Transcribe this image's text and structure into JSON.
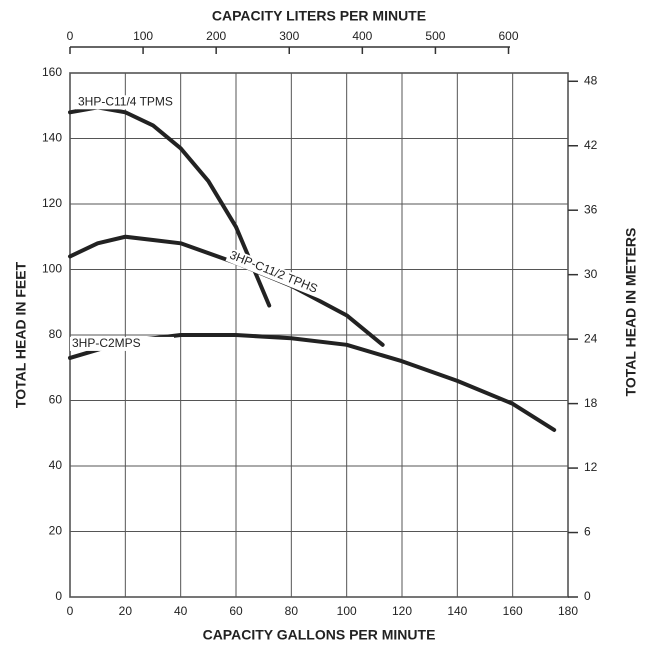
{
  "chart_data": {
    "type": "line",
    "title": "CAPACITY LITERS PER MINUTE",
    "xlabel": "CAPACITY GALLONS PER MINUTE",
    "ylabel": "TOTAL HEAD IN FEET",
    "y2label": "TOTAL HEAD IN METERS",
    "xlim": [
      0,
      180
    ],
    "xticks": [
      0,
      20,
      40,
      60,
      80,
      100,
      120,
      140,
      160,
      180
    ],
    "ylim": [
      0,
      160
    ],
    "yticks": [
      0,
      20,
      40,
      60,
      80,
      100,
      120,
      140,
      160
    ],
    "x2lim": [
      0,
      681.4
    ],
    "x2ticks": [
      0,
      100,
      200,
      300,
      400,
      500,
      600
    ],
    "y2lim": [
      0,
      48.77
    ],
    "y2ticks": [
      0,
      6,
      12,
      18,
      24,
      30,
      36,
      42,
      48
    ],
    "grid": true,
    "series": [
      {
        "name": "3HP-C11/4 TPMS",
        "color": "#222222",
        "x": [
          0,
          10,
          20,
          30,
          40,
          50,
          60,
          65,
          72
        ],
        "values": [
          148,
          149.5,
          148,
          144,
          137,
          127,
          113,
          103,
          89
        ]
      },
      {
        "name": "3HP-C11/2 TPHS",
        "color": "#222222",
        "x": [
          0,
          10,
          20,
          30,
          40,
          60,
          80,
          100,
          113
        ],
        "values": [
          104,
          108,
          110,
          109,
          108,
          102,
          95,
          86,
          77
        ]
      },
      {
        "name": "3HP-C2MPS",
        "color": "#222222",
        "x": [
          0,
          20,
          40,
          60,
          80,
          100,
          120,
          140,
          160,
          175
        ],
        "values": [
          73,
          78,
          80,
          80,
          79,
          77,
          72,
          66,
          59,
          51
        ]
      }
    ]
  }
}
